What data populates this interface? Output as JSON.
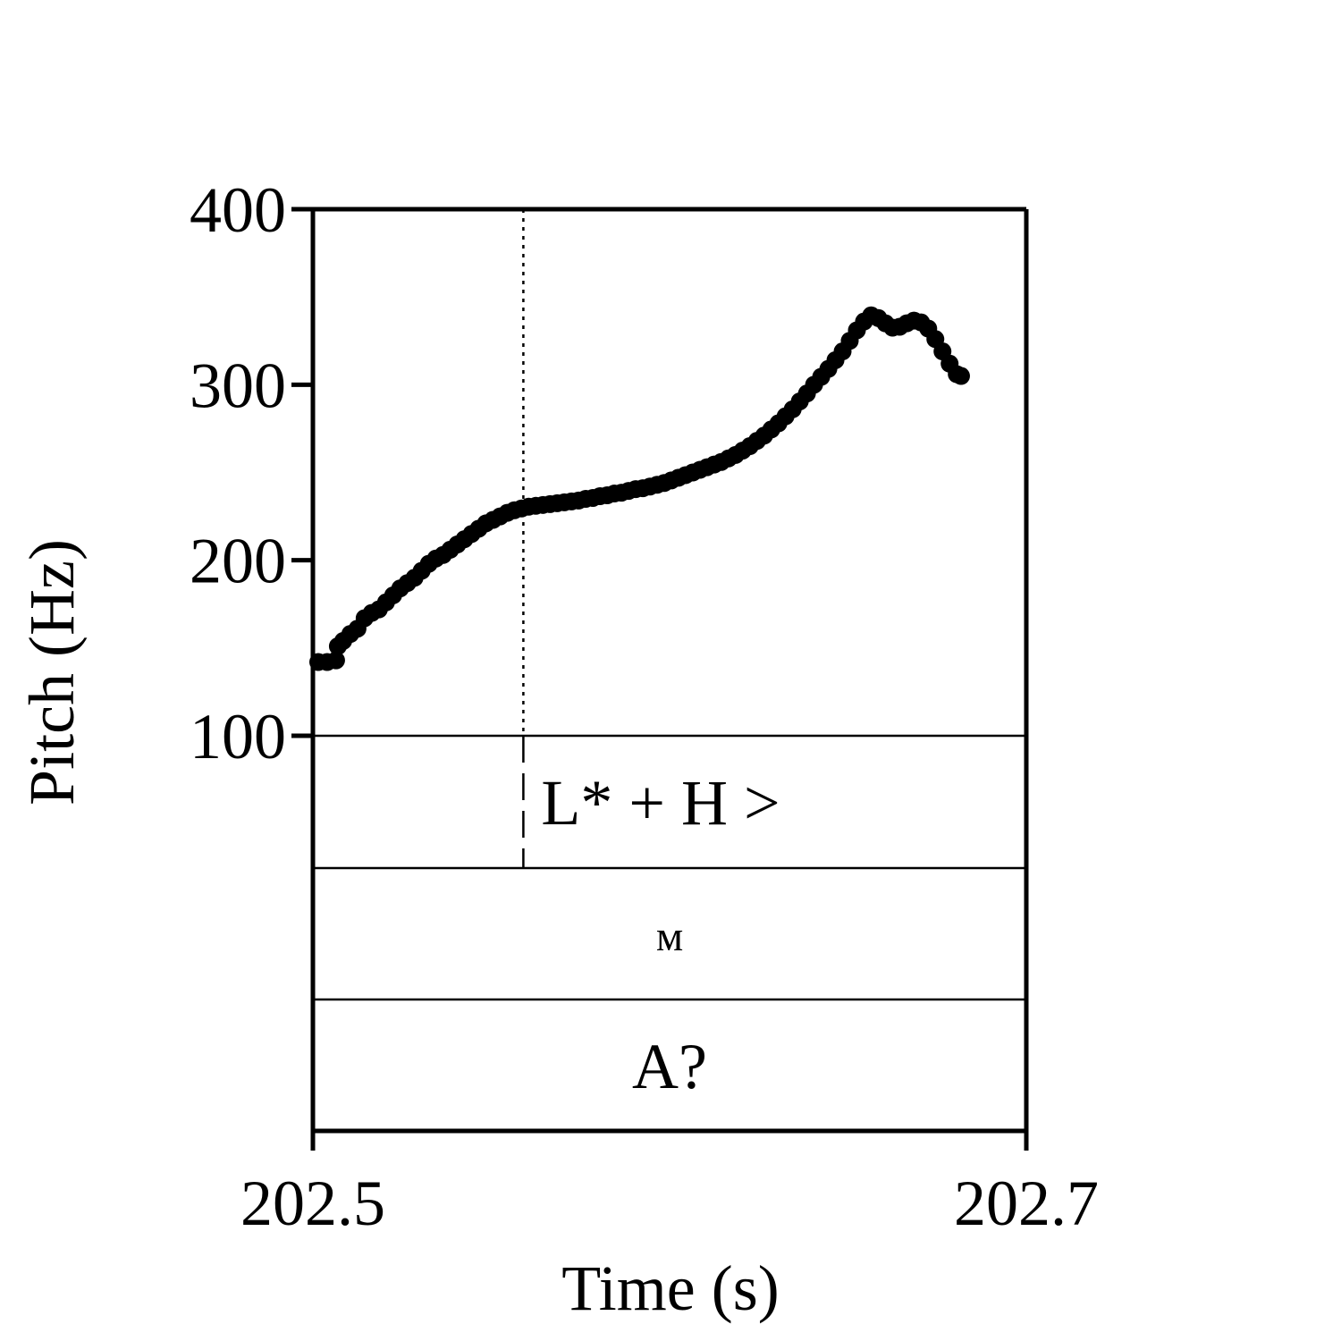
{
  "chart_data": {
    "type": "line",
    "xlabel": "Time (s)",
    "ylabel": "Pitch (Hz)",
    "xlim": [
      202.5,
      202.7
    ],
    "ylim": [
      100,
      400
    ],
    "x_ticks": [
      "202.5",
      "202.7"
    ],
    "y_ticks": [
      "100",
      "200",
      "300",
      "400"
    ],
    "marker_time": 202.559,
    "series": [
      {
        "points": [
          [
            202.5015,
            142
          ],
          [
            202.504,
            142
          ],
          [
            202.5065,
            143
          ],
          [
            202.507,
            151
          ],
          [
            202.5085,
            154
          ],
          [
            202.5105,
            158
          ],
          [
            202.5125,
            161
          ],
          [
            202.5145,
            167
          ],
          [
            202.5165,
            170
          ],
          [
            202.5185,
            172
          ],
          [
            202.5205,
            176
          ],
          [
            202.5225,
            180
          ],
          [
            202.5245,
            184
          ],
          [
            202.5265,
            187
          ],
          [
            202.5285,
            190
          ],
          [
            202.5305,
            194
          ],
          [
            202.5325,
            198
          ],
          [
            202.5345,
            201
          ],
          [
            202.5365,
            203
          ],
          [
            202.5385,
            206
          ],
          [
            202.5405,
            209
          ],
          [
            202.5425,
            212
          ],
          [
            202.5445,
            215
          ],
          [
            202.5465,
            218
          ],
          [
            202.5485,
            221
          ],
          [
            202.5505,
            223
          ],
          [
            202.5525,
            225
          ],
          [
            202.5545,
            227
          ],
          [
            202.5565,
            228.5
          ],
          [
            202.5585,
            229.5
          ],
          [
            202.5605,
            230.5
          ],
          [
            202.5625,
            231
          ],
          [
            202.5645,
            231.5
          ],
          [
            202.5665,
            232
          ],
          [
            202.5685,
            232.5
          ],
          [
            202.5705,
            233
          ],
          [
            202.5725,
            233.5
          ],
          [
            202.5745,
            234
          ],
          [
            202.5765,
            235
          ],
          [
            202.5785,
            235.5
          ],
          [
            202.5805,
            236.5
          ],
          [
            202.5825,
            237
          ],
          [
            202.5845,
            238
          ],
          [
            202.5865,
            238.5
          ],
          [
            202.5885,
            239.5
          ],
          [
            202.5905,
            240.5
          ],
          [
            202.5925,
            241
          ],
          [
            202.5945,
            242
          ],
          [
            202.5965,
            243
          ],
          [
            202.5985,
            244
          ],
          [
            202.6005,
            245.5
          ],
          [
            202.6025,
            247
          ],
          [
            202.6045,
            248.5
          ],
          [
            202.6065,
            250
          ],
          [
            202.6085,
            251.5
          ],
          [
            202.6105,
            253
          ],
          [
            202.6125,
            254.5
          ],
          [
            202.6145,
            256
          ],
          [
            202.6165,
            258
          ],
          [
            202.6185,
            260
          ],
          [
            202.6205,
            262.5
          ],
          [
            202.6225,
            265
          ],
          [
            202.6245,
            268
          ],
          [
            202.6265,
            271
          ],
          [
            202.6285,
            274.5
          ],
          [
            202.6305,
            278
          ],
          [
            202.6325,
            282
          ],
          [
            202.6345,
            286
          ],
          [
            202.6365,
            290.5
          ],
          [
            202.6385,
            295
          ],
          [
            202.6405,
            300
          ],
          [
            202.6425,
            304.5
          ],
          [
            202.6445,
            309
          ],
          [
            202.6465,
            314
          ],
          [
            202.6485,
            319
          ],
          [
            202.6505,
            325
          ],
          [
            202.6525,
            331
          ],
          [
            202.6545,
            336
          ],
          [
            202.6565,
            339.5
          ],
          [
            202.6585,
            338
          ],
          [
            202.6605,
            335
          ],
          [
            202.6625,
            332.5
          ],
          [
            202.6645,
            333
          ],
          [
            202.6665,
            335
          ],
          [
            202.6685,
            336.5
          ],
          [
            202.6705,
            335.5
          ],
          [
            202.6725,
            332
          ],
          [
            202.6745,
            326
          ],
          [
            202.6765,
            319
          ],
          [
            202.6785,
            312
          ],
          [
            202.6805,
            306
          ],
          [
            202.6817,
            305
          ]
        ]
      }
    ],
    "tiers": [
      {
        "labels": [
          {
            "text": "L* + H >",
            "time": 202.5975
          }
        ]
      },
      {
        "labels": [
          {
            "text": "м",
            "time": 202.6
          }
        ]
      },
      {
        "labels": [
          {
            "text": "А?",
            "time": 202.6
          }
        ]
      }
    ]
  }
}
